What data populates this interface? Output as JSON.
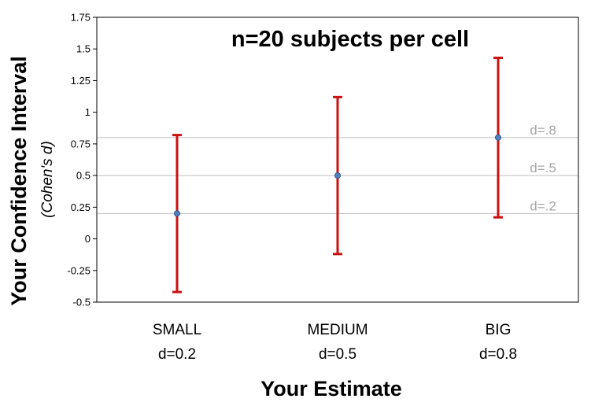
{
  "chart_data": {
    "type": "scatter",
    "title": "n=20 subjects per cell",
    "xlabel": "Your Estimate",
    "ylabel": "Your Confidence Interval",
    "ylabel_sub": "(Cohen's d)",
    "ylim": [
      -0.5,
      1.75
    ],
    "yticks": [
      "-0.5",
      "-0.25",
      "0",
      "0.25",
      "0.5",
      "0.75",
      "1",
      "1.25",
      "1.5",
      "1.75"
    ],
    "ytick_values": [
      -0.5,
      -0.25,
      0,
      0.25,
      0.5,
      0.75,
      1,
      1.25,
      1.5,
      1.75
    ],
    "categories": [
      {
        "name": "SMALL",
        "sub": "d=0.2"
      },
      {
        "name": "MEDIUM",
        "sub": "d=0.5"
      },
      {
        "name": "BIG",
        "sub": "d=0.8"
      }
    ],
    "points": [
      {
        "y": 0.2,
        "lower": -0.42,
        "upper": 0.82
      },
      {
        "y": 0.5,
        "lower": -0.12,
        "upper": 1.12
      },
      {
        "y": 0.8,
        "lower": 0.17,
        "upper": 1.43
      }
    ],
    "reference_lines": [
      {
        "value": 0.8,
        "label": "d=.8"
      },
      {
        "value": 0.5,
        "label": "d=.5"
      },
      {
        "value": 0.2,
        "label": "d=.2"
      }
    ],
    "colors": {
      "error_bar": "#cc1111",
      "marker": "#4f81bd",
      "marker_edge": "#2f5597",
      "reference_line": "#bfbfbf",
      "reference_label": "#a6a6a6"
    }
  }
}
